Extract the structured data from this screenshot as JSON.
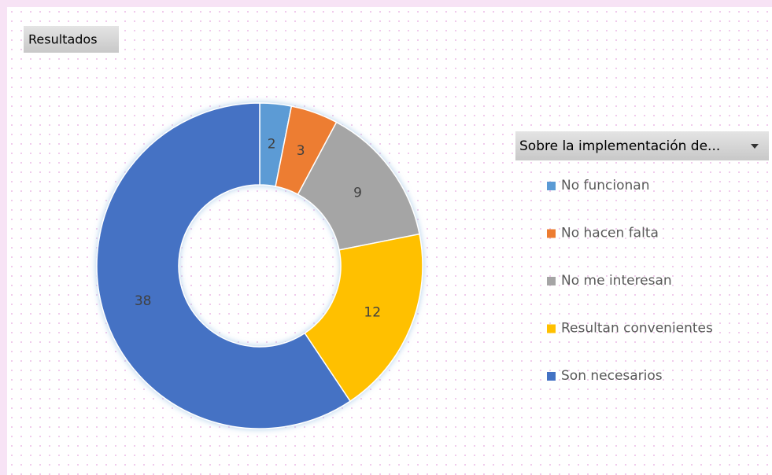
{
  "chart_data": {
    "type": "donut",
    "field_button": "Resultados",
    "legend_title": "Sobre la implementación de...",
    "categories": [
      "No funcionan",
      "No hacen falta",
      "No me interesan",
      "Resultan convenientes",
      "Son necesarios"
    ],
    "values": [
      2,
      3,
      9,
      12,
      38
    ],
    "colors": [
      "#5b9bd5",
      "#ed7d31",
      "#a5a5a5",
      "#ffc000",
      "#4472c4"
    ],
    "legend": "right"
  }
}
